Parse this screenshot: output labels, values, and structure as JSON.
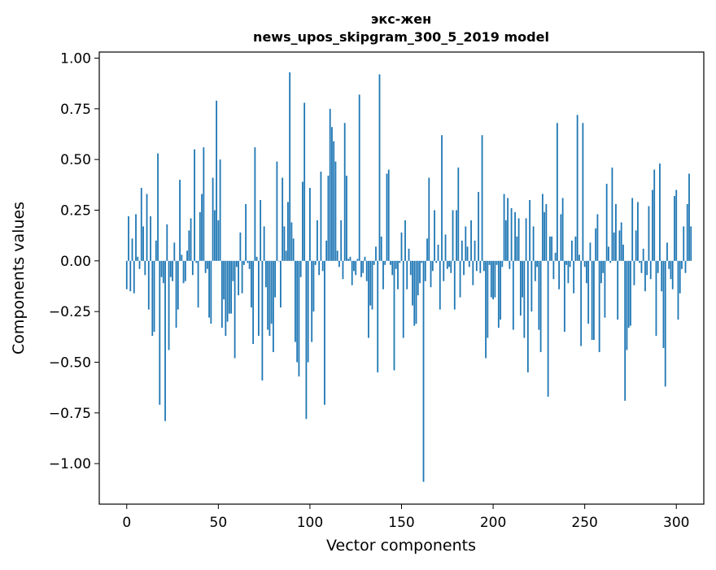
{
  "chart_data": {
    "type": "bar",
    "title_lines": [
      "экс-жен",
      "news_upos_skipgram_300_5_2019 model"
    ],
    "xlabel": "Vector components",
    "ylabel": "Components values",
    "xlim": [
      -15,
      315
    ],
    "ylim": [
      -1.2,
      1.03
    ],
    "x_ticks": [
      0,
      50,
      100,
      150,
      200,
      250,
      300
    ],
    "y_ticks": [
      1.0,
      0.75,
      0.5,
      0.25,
      0.0,
      -0.25,
      -0.5,
      -0.75,
      -1.0
    ],
    "x_tick_labels": [
      "0",
      "50",
      "100",
      "150",
      "200",
      "250",
      "300"
    ],
    "y_tick_labels": [
      "1.00",
      "0.75",
      "0.50",
      "0.25",
      "0.00",
      "−0.25",
      "−0.50",
      "−0.75",
      "−1.00"
    ],
    "grid": false,
    "bar_color": "#1f77b4",
    "values": [
      -0.14,
      0.22,
      -0.15,
      0.11,
      -0.16,
      0.23,
      0.02,
      -0.04,
      0.36,
      0.17,
      -0.07,
      0.33,
      -0.24,
      0.22,
      -0.37,
      -0.35,
      0.1,
      0.53,
      -0.71,
      -0.08,
      -0.11,
      -0.79,
      0.18,
      -0.44,
      -0.08,
      -0.1,
      0.09,
      -0.33,
      -0.24,
      0.4,
      0.03,
      -0.11,
      -0.1,
      0.05,
      0.15,
      0.21,
      -0.07,
      0.55,
      -0.01,
      -0.23,
      0.24,
      0.33,
      0.56,
      -0.06,
      -0.04,
      -0.28,
      -0.31,
      0.41,
      0.25,
      0.79,
      0.2,
      0.5,
      -0.33,
      -0.19,
      -0.37,
      -0.3,
      -0.26,
      -0.26,
      -0.1,
      -0.48,
      -0.03,
      -0.17,
      0.14,
      -0.16,
      -0.02,
      0.28,
      -0.01,
      -0.04,
      -0.23,
      -0.41,
      0.56,
      0.02,
      -0.37,
      0.3,
      -0.59,
      0.17,
      -0.13,
      -0.34,
      -0.37,
      -0.31,
      -0.45,
      -0.18,
      0.49,
      0.0,
      -0.23,
      0.41,
      0.17,
      0.05,
      0.29,
      0.93,
      0.19,
      0.11,
      -0.4,
      -0.5,
      -0.57,
      -0.08,
      0.39,
      0.78,
      -0.78,
      -0.5,
      0.36,
      -0.4,
      -0.25,
      -0.02,
      0.2,
      -0.07,
      0.44,
      -0.05,
      -0.71,
      0.1,
      0.42,
      0.75,
      0.66,
      0.59,
      0.49,
      0.05,
      -0.03,
      0.2,
      -0.09,
      0.68,
      0.42,
      0.01,
      0.02,
      -0.12,
      -0.05,
      -0.07,
      0.01,
      0.82,
      -0.08,
      -0.06,
      0.02,
      -0.1,
      -0.38,
      -0.22,
      -0.24,
      -0.02,
      0.07,
      -0.55,
      0.92,
      0.12,
      -0.14,
      -0.02,
      0.43,
      0.45,
      -0.02,
      -0.07,
      -0.54,
      -0.04,
      -0.14,
      -0.01,
      0.14,
      -0.38,
      0.2,
      -0.14,
      0.06,
      -0.07,
      -0.22,
      -0.32,
      -0.31,
      -0.17,
      -0.11,
      -0.01,
      -1.09,
      -0.1,
      0.11,
      0.41,
      -0.13,
      -0.05,
      0.25,
      -0.01,
      0.08,
      -0.24,
      0.62,
      -0.1,
      0.13,
      -0.04,
      -0.03,
      -0.06,
      0.25,
      -0.24,
      0.25,
      0.46,
      -0.18,
      0.1,
      -0.07,
      0.17,
      0.07,
      -0.03,
      0.2,
      -0.12,
      0.1,
      -0.05,
      0.34,
      -0.06,
      0.62,
      -0.05,
      -0.48,
      -0.38,
      -0.02,
      -0.18,
      -0.19,
      -0.18,
      -0.02,
      -0.33,
      -0.29,
      -0.03,
      0.33,
      0.2,
      0.31,
      -0.04,
      0.26,
      -0.34,
      0.24,
      0.12,
      0.21,
      -0.27,
      -0.18,
      -0.38,
      0.21,
      -0.55,
      0.3,
      -0.25,
      0.17,
      -0.1,
      -0.03,
      -0.34,
      -0.45,
      0.33,
      0.24,
      0.28,
      -0.67,
      0.12,
      0.12,
      -0.09,
      0.04,
      0.68,
      -0.14,
      0.23,
      0.31,
      -0.35,
      -0.02,
      -0.11,
      -0.03,
      0.1,
      -0.16,
      0.12,
      0.72,
      0.03,
      -0.42,
      0.68,
      -0.03,
      -0.11,
      -0.31,
      0.09,
      -0.39,
      -0.39,
      0.16,
      0.23,
      -0.45,
      -0.11,
      -0.06,
      -0.28,
      0.38,
      0.07,
      -0.01,
      0.46,
      0.14,
      0.28,
      -0.29,
      0.15,
      0.19,
      0.08,
      -0.69,
      -0.44,
      -0.33,
      -0.32,
      0.31,
      -0.12,
      0.15,
      0.29,
      -0.01,
      -0.06,
      0.06,
      -0.15,
      -0.07,
      0.27,
      -0.09,
      0.35,
      0.45,
      -0.37,
      -0.06,
      0.48,
      -0.15,
      -0.43,
      -0.62,
      0.09,
      -0.04,
      -0.09,
      -0.14,
      0.32,
      0.35,
      -0.29,
      -0.16,
      -0.04,
      0.17,
      -0.06,
      0.28,
      0.43,
      0.17
    ]
  }
}
